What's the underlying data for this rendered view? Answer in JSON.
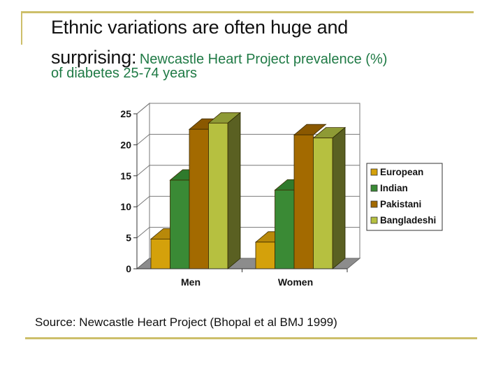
{
  "slide": {
    "title_main": "Ethnic variations are often huge and",
    "title_main_2": "surprising:",
    "title_sub_1": "Newcastle Heart Project prevalence (%)",
    "title_sub_2": "of diabetes 25-74 years",
    "source": "Source: Newcastle Heart Project (Bhopal et al BMJ 1999)",
    "accent_color": "#cdbf6a",
    "subtitle_color": "#1f7a45"
  },
  "chart_data": {
    "type": "bar",
    "style": "3d-clustered-column",
    "title": "Newcastle Heart Project prevalence (%) of diabetes 25-74 years",
    "categories": [
      "Men",
      "Women"
    ],
    "series": [
      {
        "name": "European",
        "values": [
          4.8,
          4.3
        ],
        "color": "#d4a10b",
        "side": "#a07a08",
        "top": "#b8890a"
      },
      {
        "name": "Indian",
        "values": [
          14.3,
          12.7
        ],
        "color": "#3a8a35",
        "side": "#266a25",
        "top": "#2f7a2c"
      },
      {
        "name": "Pakistani",
        "values": [
          22.5,
          21.6
        ],
        "color": "#a36a00",
        "side": "#7a4f00",
        "top": "#8a5800"
      },
      {
        "name": "Bangladeshi",
        "values": [
          23.5,
          21.1
        ],
        "color": "#b6c040",
        "side": "#5a6022",
        "top": "#8e9a35"
      }
    ],
    "xlabel": "",
    "ylabel": "",
    "ylim": [
      0,
      25
    ],
    "yticks": [
      0,
      5,
      10,
      15,
      20,
      25
    ],
    "grid": true,
    "legend": "right"
  }
}
